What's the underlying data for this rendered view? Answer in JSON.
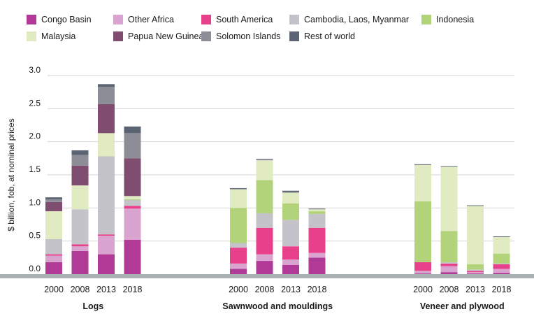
{
  "chart_data": {
    "type": "stacked-bar",
    "ylabel": "$ billion, fob, at nominal prices",
    "ylim": [
      0,
      3.0
    ],
    "yticks": [
      "0.0",
      "0.5",
      "1.0",
      "1.5",
      "2.0",
      "2.5",
      "3.0"
    ],
    "series": [
      {
        "name": "Congo Basin",
        "color": "#b03a96"
      },
      {
        "name": "Other Africa",
        "color": "#d9a4cf"
      },
      {
        "name": "South America",
        "color": "#e8408a"
      },
      {
        "name": "Cambodia, Laos, Myanmar",
        "color": "#c4c3ca"
      },
      {
        "name": "Indonesia",
        "color": "#b2d37a"
      },
      {
        "name": "Malaysia",
        "color": "#e1ebc2"
      },
      {
        "name": "Papua New Guinea",
        "color": "#7e4d6f"
      },
      {
        "name": "Solomon Islands",
        "color": "#8c8d96"
      },
      {
        "name": "Rest of world",
        "color": "#5b6472"
      }
    ],
    "groups": [
      {
        "label": "Logs",
        "bars": [
          {
            "year": "2000",
            "values": [
              0.18,
              0.1,
              0.02,
              0.23,
              0.0,
              0.42,
              0.14,
              0.04,
              0.03
            ]
          },
          {
            "year": "2008",
            "values": [
              0.35,
              0.07,
              0.03,
              0.53,
              0.0,
              0.36,
              0.3,
              0.16,
              0.07
            ]
          },
          {
            "year": "2013",
            "values": [
              0.3,
              0.28,
              0.02,
              1.18,
              0.0,
              0.35,
              0.44,
              0.26,
              0.04
            ]
          },
          {
            "year": "2018",
            "values": [
              0.52,
              0.47,
              0.04,
              0.09,
              0.01,
              0.05,
              0.57,
              0.38,
              0.1
            ]
          }
        ]
      },
      {
        "label": "Sawnwood and mouldings",
        "bars": [
          {
            "year": "2000",
            "values": [
              0.08,
              0.08,
              0.24,
              0.07,
              0.53,
              0.28,
              0.0,
              0.01,
              0.01
            ]
          },
          {
            "year": "2008",
            "values": [
              0.2,
              0.1,
              0.4,
              0.22,
              0.5,
              0.3,
              0.0,
              0.01,
              0.01
            ]
          },
          {
            "year": "2013",
            "values": [
              0.14,
              0.08,
              0.2,
              0.4,
              0.25,
              0.16,
              0.0,
              0.01,
              0.02
            ]
          },
          {
            "year": "2018",
            "values": [
              0.25,
              0.07,
              0.38,
              0.21,
              0.04,
              0.03,
              0.0,
              0.0,
              0.01
            ]
          }
        ]
      },
      {
        "label": "Veneer and plywood",
        "bars": [
          {
            "year": "2000",
            "values": [
              0.01,
              0.04,
              0.13,
              0.0,
              0.92,
              0.55,
              0.0,
              0.0,
              0.01
            ]
          },
          {
            "year": "2008",
            "values": [
              0.03,
              0.09,
              0.04,
              0.02,
              0.47,
              0.97,
              0.0,
              0.0,
              0.01
            ]
          },
          {
            "year": "2013",
            "values": [
              0.01,
              0.02,
              0.02,
              0.02,
              0.08,
              0.88,
              0.0,
              0.0,
              0.01
            ]
          },
          {
            "year": "2018",
            "values": [
              0.02,
              0.06,
              0.07,
              0.01,
              0.15,
              0.25,
              0.0,
              0.0,
              0.01
            ]
          }
        ]
      }
    ]
  }
}
